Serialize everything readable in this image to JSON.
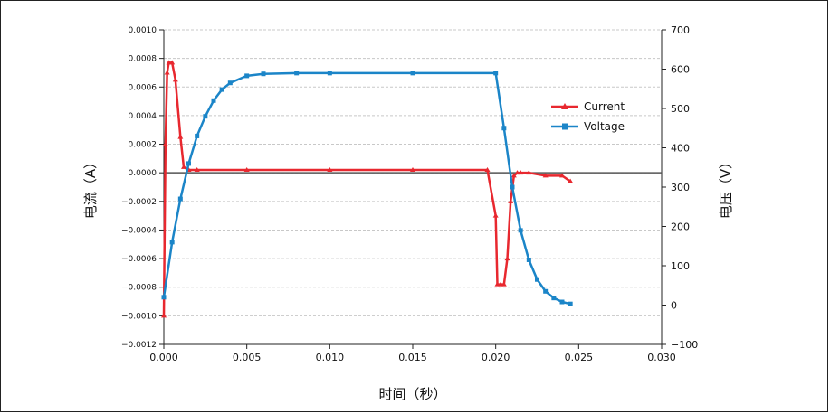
{
  "chart_data": {
    "type": "scatter",
    "title": "",
    "xlabel": "时间（秒）",
    "ylabel_left": "电流（A）",
    "ylabel_right": "电压（V）",
    "xlim": [
      0,
      0.03
    ],
    "ylim_left": [
      -0.0012,
      0.001
    ],
    "ylim_right": [
      -100,
      700
    ],
    "x_ticks": [
      "0.000",
      "0.005",
      "0.010",
      "0.015",
      "0.020",
      "0.025",
      "0.030"
    ],
    "y_left_ticks": [
      "0.0010",
      "0.0008",
      "0.0006",
      "0.0004",
      "0.0002",
      "0.0000",
      "−0.0002",
      "−0.0004",
      "−0.0006",
      "−0.0008",
      "−0.0010",
      "−0.0012"
    ],
    "y_right_ticks": [
      "700",
      "600",
      "500",
      "400",
      "300",
      "200",
      "100",
      "0",
      "−100"
    ],
    "grid": "dashed horizontal",
    "legend_position": "upper-right",
    "series": [
      {
        "name": "Current",
        "axis": "left",
        "marker": "triangle",
        "color": "#e8282f",
        "x": [
          0.0,
          0.0001,
          0.0002,
          0.0003,
          0.0005,
          0.0007,
          0.001,
          0.0012,
          0.0015,
          0.002,
          0.005,
          0.01,
          0.015,
          0.0195,
          0.02,
          0.0201,
          0.0203,
          0.0205,
          0.0207,
          0.0209,
          0.0211,
          0.0213,
          0.0215,
          0.022,
          0.023,
          0.024,
          0.0245
        ],
        "y": [
          -0.001,
          0.0002,
          0.0007,
          0.00077,
          0.00077,
          0.00065,
          0.00025,
          4e-05,
          2e-05,
          2e-05,
          2e-05,
          2e-05,
          2e-05,
          2e-05,
          -0.0003,
          -0.00078,
          -0.00078,
          -0.00078,
          -0.0006,
          -0.0002,
          -2e-05,
          0.0,
          0.0,
          0.0,
          -2e-05,
          -2e-05,
          -6e-05
        ]
      },
      {
        "name": "Voltage",
        "axis": "right",
        "marker": "square",
        "color": "#1b85c8",
        "x": [
          0.0,
          0.0005,
          0.001,
          0.0015,
          0.002,
          0.0025,
          0.003,
          0.0035,
          0.004,
          0.005,
          0.006,
          0.008,
          0.01,
          0.015,
          0.02,
          0.0205,
          0.021,
          0.0215,
          0.022,
          0.0225,
          0.023,
          0.0235,
          0.024,
          0.0245
        ],
        "y": [
          20,
          160,
          270,
          360,
          430,
          480,
          520,
          548,
          565,
          583,
          588,
          590,
          590,
          590,
          590,
          450,
          300,
          190,
          115,
          65,
          35,
          18,
          8,
          3
        ]
      }
    ]
  }
}
